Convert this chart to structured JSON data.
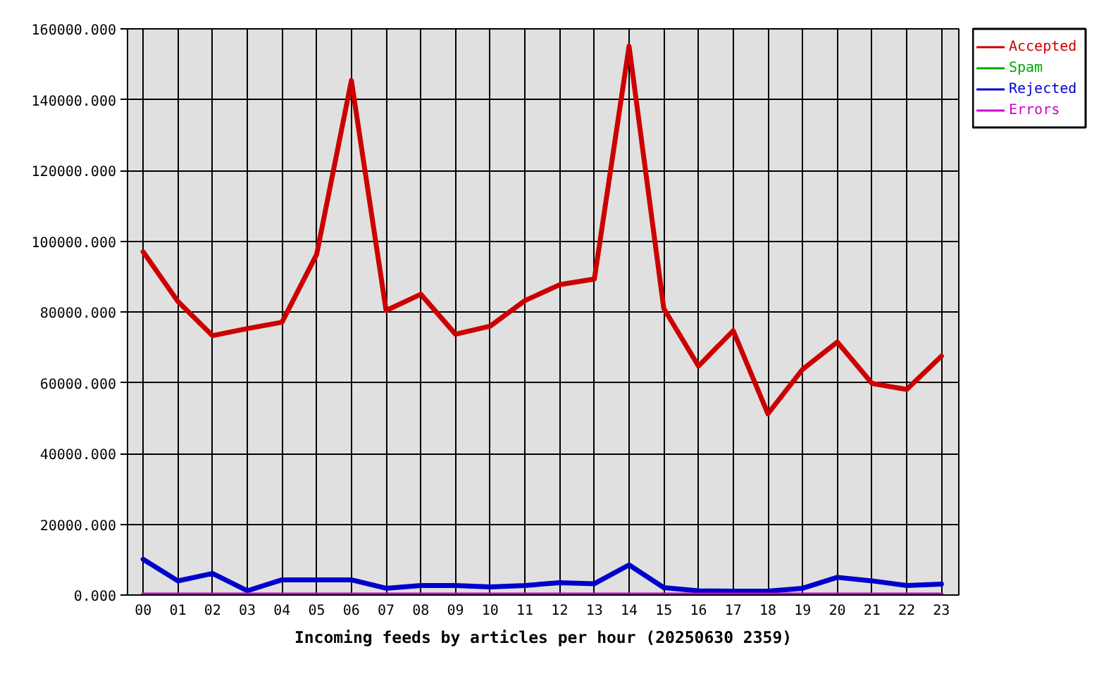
{
  "chart_data": {
    "type": "line",
    "categories": [
      "00",
      "01",
      "02",
      "03",
      "04",
      "05",
      "06",
      "07",
      "08",
      "09",
      "10",
      "11",
      "12",
      "13",
      "14",
      "15",
      "16",
      "17",
      "18",
      "19",
      "20",
      "21",
      "22",
      "23"
    ],
    "xlabel": "Incoming feeds by articles per hour (20250630 2359)",
    "ylim": [
      0,
      160000
    ],
    "yticks": [
      {
        "value": 0,
        "label": "0.000"
      },
      {
        "value": 20000,
        "label": "20000.000"
      },
      {
        "value": 40000,
        "label": "40000.000"
      },
      {
        "value": 60000,
        "label": "60000.000"
      },
      {
        "value": 80000,
        "label": "80000.000"
      },
      {
        "value": 100000,
        "label": "100000.000"
      },
      {
        "value": 120000,
        "label": "120000.000"
      },
      {
        "value": 140000,
        "label": "140000.000"
      },
      {
        "value": 160000,
        "label": "160000.000"
      }
    ],
    "grid": true,
    "legend": "top right",
    "line_style": "solid",
    "series": [
      {
        "name": "Accepted",
        "color": "#cc0000",
        "values": [
          97000,
          83000,
          73300,
          75300,
          77100,
          96300,
          145400,
          80400,
          85000,
          73700,
          76000,
          83200,
          87700,
          89300,
          155100,
          81000,
          64700,
          74700,
          51200,
          63800,
          71500,
          59800,
          58100,
          67500
        ]
      },
      {
        "name": "Spam",
        "color": "#00aa00",
        "values": [
          null,
          null,
          null,
          null,
          null,
          null,
          null,
          null,
          null,
          null,
          null,
          null,
          null,
          null,
          null,
          null,
          null,
          null,
          null,
          null,
          null,
          null,
          null,
          null
        ]
      },
      {
        "name": "Rejected",
        "color": "#0000cc",
        "values": [
          10100,
          4000,
          6100,
          1200,
          4300,
          4300,
          4300,
          1900,
          2700,
          2700,
          2300,
          2700,
          3500,
          3200,
          8500,
          2100,
          1200,
          1100,
          1100,
          1900,
          5000,
          4000,
          2700,
          3100
        ]
      },
      {
        "name": "Errors",
        "color": "#cc00cc",
        "values": [
          0,
          0,
          0,
          0,
          0,
          0,
          0,
          0,
          0,
          0,
          0,
          0,
          0,
          0,
          0,
          0,
          0,
          0,
          0,
          0,
          0,
          0,
          0,
          0
        ]
      }
    ]
  }
}
